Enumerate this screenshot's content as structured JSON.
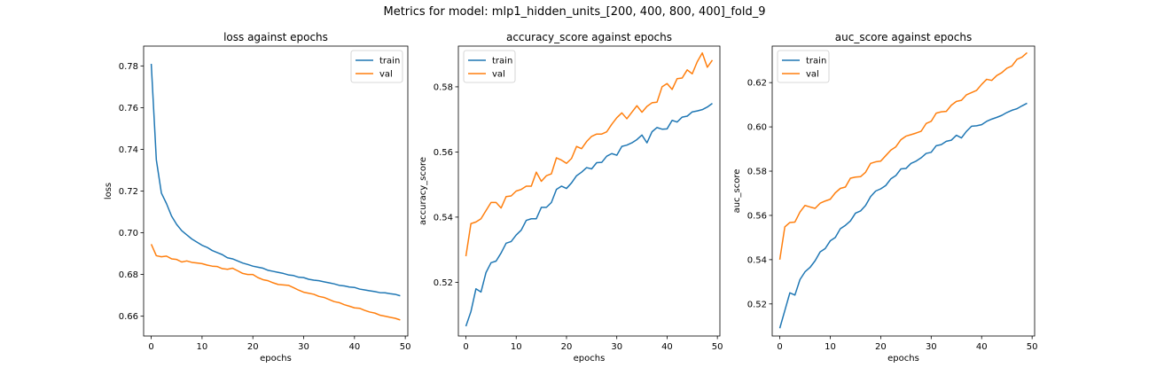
{
  "figure": {
    "suptitle": "Metrics for model: mlp1_hidden_units_[200, 400, 800, 400]_fold_9"
  },
  "colors": {
    "train": "#1f77b4",
    "val": "#ff7f0e"
  },
  "chart_data": [
    {
      "type": "line",
      "title": "loss against epochs",
      "xlabel": "epochs",
      "ylabel": "loss",
      "xlim": [
        -1.5,
        50.5
      ],
      "ylim": [
        0.6505,
        0.7895
      ],
      "xticks": [
        0,
        10,
        20,
        30,
        40,
        50
      ],
      "yticks": [
        0.66,
        0.68,
        0.7,
        0.72,
        0.74,
        0.76,
        0.78
      ],
      "ytick_labels": [
        "0.66",
        "0.68",
        "0.70",
        "0.72",
        "0.74",
        "0.76",
        "0.78"
      ],
      "legend": "top-right",
      "series": [
        {
          "name": "train",
          "values": [
            0.781,
            0.735,
            0.719,
            0.714,
            0.708,
            0.704,
            0.701,
            0.699,
            0.697,
            0.6955,
            0.694,
            0.693,
            0.6915,
            0.6905,
            0.6895,
            0.688,
            0.6875,
            0.6865,
            0.6855,
            0.6848,
            0.684,
            0.6835,
            0.683,
            0.682,
            0.6815,
            0.681,
            0.6805,
            0.6798,
            0.6795,
            0.6787,
            0.6785,
            0.6777,
            0.6773,
            0.677,
            0.6765,
            0.676,
            0.6755,
            0.6748,
            0.6745,
            0.674,
            0.6738,
            0.673,
            0.6726,
            0.6722,
            0.6718,
            0.6713,
            0.6712,
            0.6708,
            0.6705,
            0.6698
          ]
        },
        {
          "name": "val",
          "values": [
            0.6945,
            0.689,
            0.6885,
            0.6888,
            0.6875,
            0.6872,
            0.686,
            0.6865,
            0.6858,
            0.6855,
            0.6852,
            0.6845,
            0.684,
            0.6838,
            0.6828,
            0.6825,
            0.683,
            0.6818,
            0.6805,
            0.68,
            0.68,
            0.6785,
            0.6775,
            0.677,
            0.676,
            0.6752,
            0.675,
            0.6748,
            0.6737,
            0.6725,
            0.6715,
            0.671,
            0.6705,
            0.6695,
            0.669,
            0.668,
            0.667,
            0.6665,
            0.6655,
            0.6648,
            0.664,
            0.6638,
            0.6628,
            0.662,
            0.6615,
            0.6605,
            0.66,
            0.6595,
            0.659,
            0.6582
          ]
        }
      ]
    },
    {
      "type": "line",
      "title": "accuracy_score against epochs",
      "xlabel": "epochs",
      "ylabel": "accuracy_score",
      "xlim": [
        -1.5,
        50.5
      ],
      "ylim": [
        0.5035,
        0.5925
      ],
      "xticks": [
        0,
        10,
        20,
        30,
        40,
        50
      ],
      "yticks": [
        0.52,
        0.54,
        0.56,
        0.58
      ],
      "ytick_labels": [
        "0.52",
        "0.54",
        "0.56",
        "0.58"
      ],
      "legend": "top-left",
      "series": [
        {
          "name": "train",
          "values": [
            0.5065,
            0.511,
            0.518,
            0.517,
            0.523,
            0.526,
            0.5265,
            0.529,
            0.532,
            0.5325,
            0.5345,
            0.536,
            0.539,
            0.5395,
            0.5395,
            0.543,
            0.543,
            0.5445,
            0.5485,
            0.5495,
            0.5488,
            0.5505,
            0.5527,
            0.5538,
            0.5552,
            0.5548,
            0.5567,
            0.5568,
            0.5587,
            0.5595,
            0.559,
            0.5617,
            0.5621,
            0.5628,
            0.5638,
            0.5652,
            0.5628,
            0.5662,
            0.5675,
            0.567,
            0.5671,
            0.5697,
            0.5692,
            0.5707,
            0.571,
            0.5723,
            0.5726,
            0.573,
            0.5738,
            0.5749
          ]
        },
        {
          "name": "val",
          "values": [
            0.528,
            0.538,
            0.5385,
            0.5395,
            0.542,
            0.5445,
            0.5445,
            0.5428,
            0.5463,
            0.5465,
            0.548,
            0.5485,
            0.5495,
            0.5495,
            0.5538,
            0.551,
            0.5527,
            0.5533,
            0.5582,
            0.5575,
            0.5565,
            0.558,
            0.5617,
            0.561,
            0.5632,
            0.5648,
            0.5655,
            0.5655,
            0.5662,
            0.5685,
            0.5705,
            0.572,
            0.5702,
            0.5722,
            0.5742,
            0.5722,
            0.574,
            0.5751,
            0.5753,
            0.58,
            0.581,
            0.5792,
            0.5825,
            0.5827,
            0.5852,
            0.584,
            0.5877,
            0.5904,
            0.586,
            0.5882
          ]
        }
      ]
    },
    {
      "type": "line",
      "title": "auc_score against epochs",
      "xlabel": "epochs",
      "ylabel": "auc_score",
      "xlim": [
        -1.5,
        50.5
      ],
      "ylim": [
        0.5055,
        0.6365
      ],
      "xticks": [
        0,
        10,
        20,
        30,
        40,
        50
      ],
      "yticks": [
        0.52,
        0.54,
        0.56,
        0.58,
        0.6,
        0.62
      ],
      "ytick_labels": [
        "0.52",
        "0.54",
        "0.56",
        "0.58",
        "0.60",
        "0.62"
      ],
      "legend": "top-left",
      "series": [
        {
          "name": "train",
          "values": [
            0.509,
            0.517,
            0.525,
            0.524,
            0.531,
            0.5345,
            0.5365,
            0.5395,
            0.5435,
            0.545,
            0.5485,
            0.55,
            0.554,
            0.5555,
            0.5575,
            0.561,
            0.562,
            0.5645,
            0.5685,
            0.571,
            0.572,
            0.5735,
            0.5765,
            0.578,
            0.581,
            0.5812,
            0.5835,
            0.5845,
            0.586,
            0.588,
            0.5885,
            0.5915,
            0.592,
            0.5935,
            0.594,
            0.5962,
            0.595,
            0.598,
            0.6003,
            0.6005,
            0.601,
            0.6025,
            0.6035,
            0.6043,
            0.6052,
            0.6065,
            0.6075,
            0.6082,
            0.6095,
            0.6107
          ]
        },
        {
          "name": "val",
          "values": [
            0.54,
            0.5548,
            0.5568,
            0.557,
            0.5615,
            0.5645,
            0.5638,
            0.5632,
            0.5655,
            0.5665,
            0.5673,
            0.5702,
            0.5722,
            0.5728,
            0.5768,
            0.5773,
            0.5775,
            0.5795,
            0.5835,
            0.5842,
            0.5845,
            0.587,
            0.5895,
            0.591,
            0.5942,
            0.5958,
            0.5965,
            0.5972,
            0.598,
            0.6015,
            0.6025,
            0.6062,
            0.6068,
            0.607,
            0.6098,
            0.6115,
            0.612,
            0.6145,
            0.6155,
            0.6165,
            0.6192,
            0.6215,
            0.621,
            0.6232,
            0.6245,
            0.6265,
            0.6275,
            0.6305,
            0.6315,
            0.6335
          ]
        }
      ]
    }
  ]
}
